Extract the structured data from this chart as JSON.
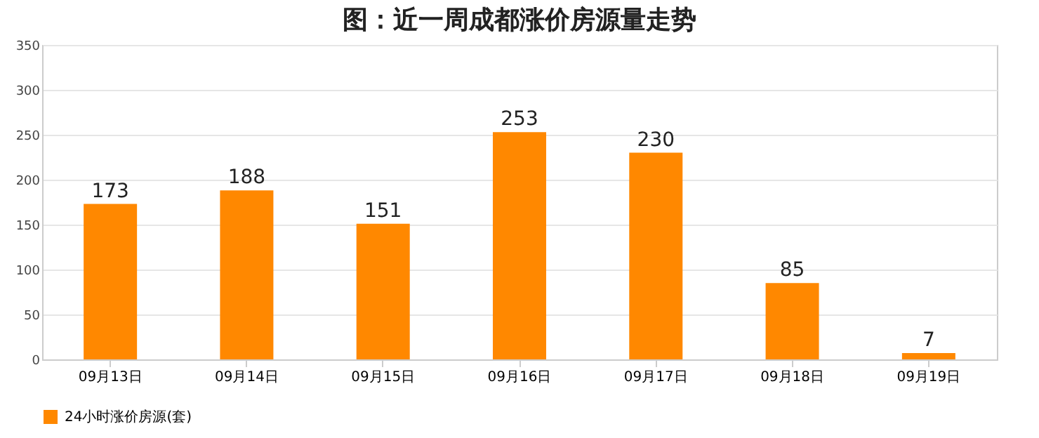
{
  "chart_data": {
    "type": "bar",
    "title": "图：近一周成都涨价房源量走势",
    "categories": [
      "09月13日",
      "09月14日",
      "09月15日",
      "09月16日",
      "09月17日",
      "09月18日",
      "09月19日"
    ],
    "series": [
      {
        "name": "24小时涨价房源(套)",
        "color": "#ff8800",
        "values": [
          173,
          188,
          151,
          253,
          230,
          85,
          7
        ]
      }
    ],
    "ylim": [
      0,
      350
    ],
    "yticks": [
      0,
      50,
      100,
      150,
      200,
      250,
      300,
      350
    ],
    "grid": "y",
    "legend": "bottom",
    "data_labels": true
  }
}
